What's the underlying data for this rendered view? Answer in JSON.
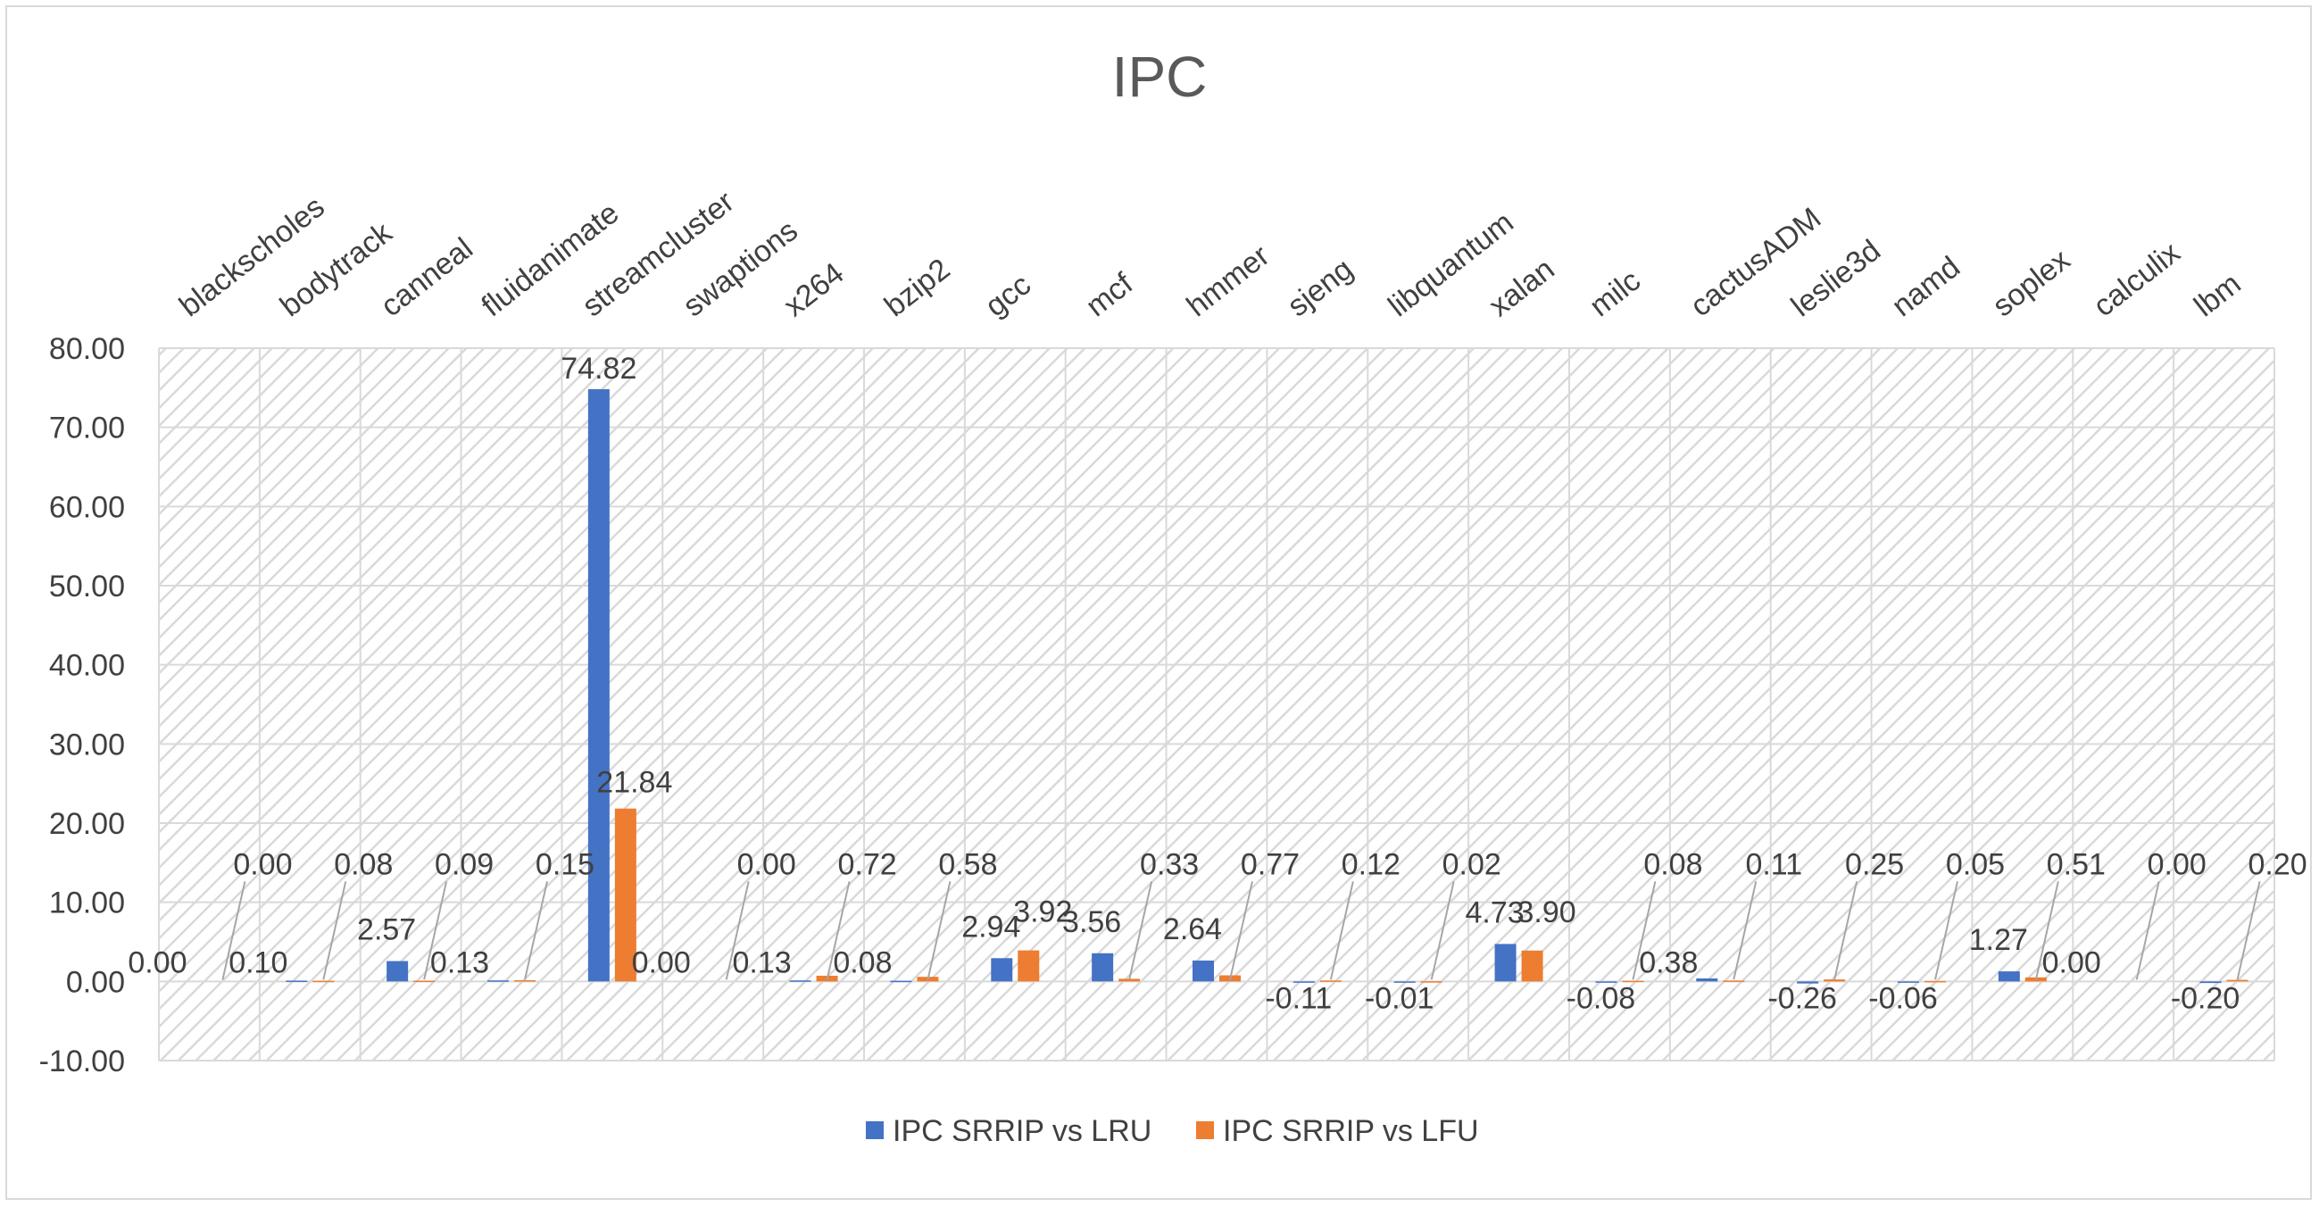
{
  "chart_data": {
    "type": "bar",
    "title": "IPC",
    "xlabel": "",
    "ylabel": "",
    "ylim": [
      -10,
      80
    ],
    "yticks": [
      "80.00",
      "70.00",
      "60.00",
      "50.00",
      "40.00",
      "30.00",
      "20.00",
      "10.00",
      "0.00",
      "-10.00"
    ],
    "grid": true,
    "legend_position": "bottom",
    "categories": [
      "blackscholes",
      "bodytrack",
      "canneal",
      "fluidanimate",
      "streamcluster",
      "swaptions",
      "x264",
      "bzip2",
      "gcc",
      "mcf",
      "hmmer",
      "sjeng",
      "libquantum",
      "xalan",
      "milc",
      "cactusADM",
      "leslie3d",
      "namd",
      "soplex",
      "calculix",
      "lbm"
    ],
    "series": [
      {
        "name": "IPC SRRIP vs LRU",
        "color": "#4472c4",
        "values": [
          0.0,
          0.1,
          2.57,
          0.13,
          74.82,
          0.0,
          0.13,
          0.08,
          2.94,
          3.56,
          2.64,
          -0.11,
          -0.01,
          4.73,
          -0.08,
          0.38,
          -0.26,
          -0.06,
          1.27,
          0.0,
          -0.2
        ],
        "labels": [
          "0.00",
          "0.10",
          "2.57",
          "0.13",
          "74.82",
          "0.00",
          "0.13",
          "0.08",
          "2.94",
          "3.56",
          "2.64",
          "-0.11",
          "-0.01",
          "4.73",
          "-0.08",
          "0.38",
          "-0.26",
          "-0.06",
          "1.27",
          "0.00",
          "-0.20"
        ]
      },
      {
        "name": "IPC SRRIP vs LFU",
        "color": "#ed7d31",
        "values": [
          0.0,
          0.08,
          0.09,
          0.15,
          21.84,
          0.0,
          0.72,
          0.58,
          3.92,
          0.33,
          0.77,
          0.12,
          0.02,
          3.9,
          0.08,
          0.11,
          0.25,
          0.05,
          0.51,
          0.0,
          0.2
        ],
        "labels": [
          "0.00",
          "0.08",
          "0.09",
          "0.15",
          "21.84",
          "0.00",
          "0.72",
          "0.58",
          "3.92",
          "0.33",
          "0.77",
          "0.12",
          "0.02",
          "3.90",
          "0.08",
          "0.11",
          "0.25",
          "0.05",
          "0.51",
          "0.00",
          "0.20"
        ]
      }
    ]
  },
  "colors": {
    "plot_hatch": "#d9d9d9",
    "gridline": "#d9d9d9",
    "leader_line": "#a6a6a6",
    "text": "#404040",
    "title": "#595959"
  }
}
